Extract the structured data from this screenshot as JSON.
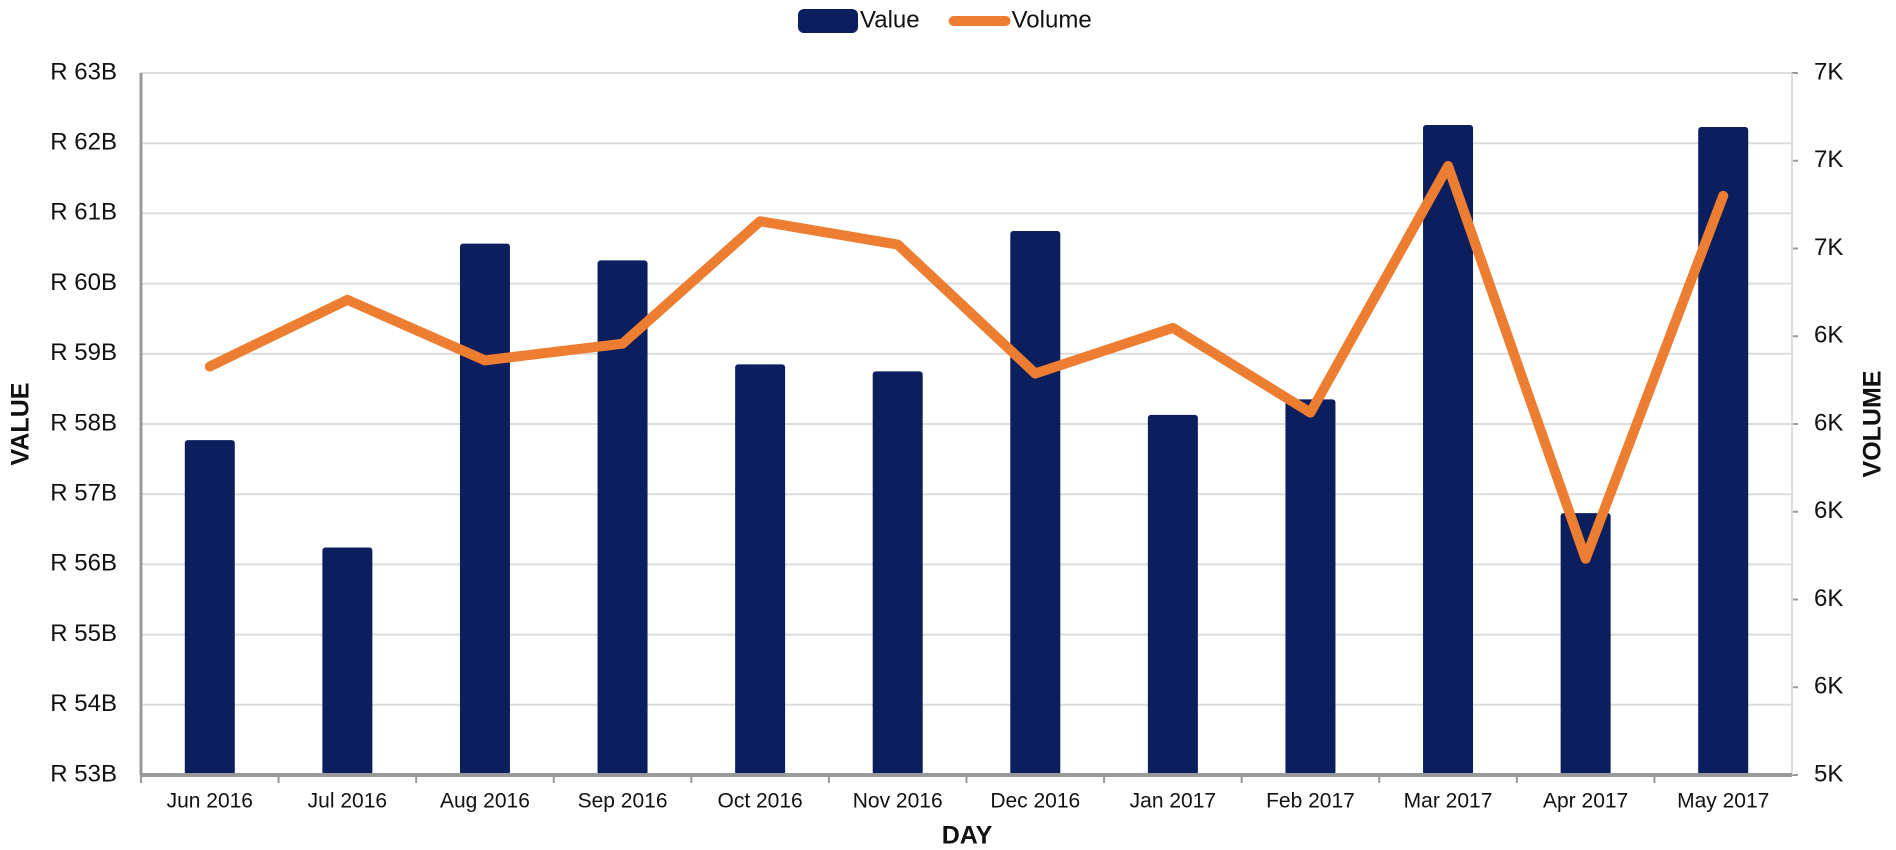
{
  "chart_data": {
    "type": "bar_line",
    "x_label": "DAY",
    "y_label": "VALUE",
    "y2_label": "VOLUME",
    "categories": [
      "Jun 2016",
      "Jul 2016",
      "Aug 2016",
      "Sep 2016",
      "Oct 2016",
      "Nov 2016",
      "Dec 2016",
      "Jan 2017",
      "Feb 2017",
      "Mar 2017",
      "Apr 2017",
      "May 2017"
    ],
    "series": [
      {
        "name": "Value",
        "type": "bar",
        "color": "#0b1f5e",
        "values": [
          57770000000,
          56240000000,
          60570000000,
          60330000000,
          58850000000,
          58750000000,
          60750000000,
          58130000000,
          58350000000,
          62260000000,
          56730000000,
          62230000000
        ]
      },
      {
        "name": "Volume",
        "type": "line",
        "color": "#ed7d31",
        "axis": "y2",
        "values": [
          6331,
          6483,
          6345,
          6383,
          6662,
          6609,
          6315,
          6419,
          6226,
          6788,
          5893,
          6720
        ]
      }
    ],
    "ylim": [
      53000000000,
      63000000000
    ],
    "yticks": [
      {
        "value": 53000000000,
        "label": "R 53B"
      },
      {
        "value": 54000000000,
        "label": "R 54B"
      },
      {
        "value": 55000000000,
        "label": "R 55B"
      },
      {
        "value": 56000000000,
        "label": "R 56B"
      },
      {
        "value": 57000000000,
        "label": "R 57B"
      },
      {
        "value": 58000000000,
        "label": "R 58B"
      },
      {
        "value": 59000000000,
        "label": "R 59B"
      },
      {
        "value": 60000000000,
        "label": "R 60B"
      },
      {
        "value": 61000000000,
        "label": "R 61B"
      },
      {
        "value": 62000000000,
        "label": "R 62B"
      },
      {
        "value": 63000000000,
        "label": "R 63B"
      }
    ],
    "y2lim": [
      5400,
      7000
    ],
    "y2ticks": [
      {
        "value": 5400,
        "label": "5K"
      },
      {
        "value": 5600,
        "label": "6K"
      },
      {
        "value": 5800,
        "label": "6K"
      },
      {
        "value": 6000,
        "label": "6K"
      },
      {
        "value": 6200,
        "label": "6K"
      },
      {
        "value": 6400,
        "label": "6K"
      },
      {
        "value": 6600,
        "label": "7K"
      },
      {
        "value": 6800,
        "label": "7K"
      },
      {
        "value": 7000,
        "label": "7K"
      }
    ],
    "grid": true,
    "legend": "top"
  }
}
